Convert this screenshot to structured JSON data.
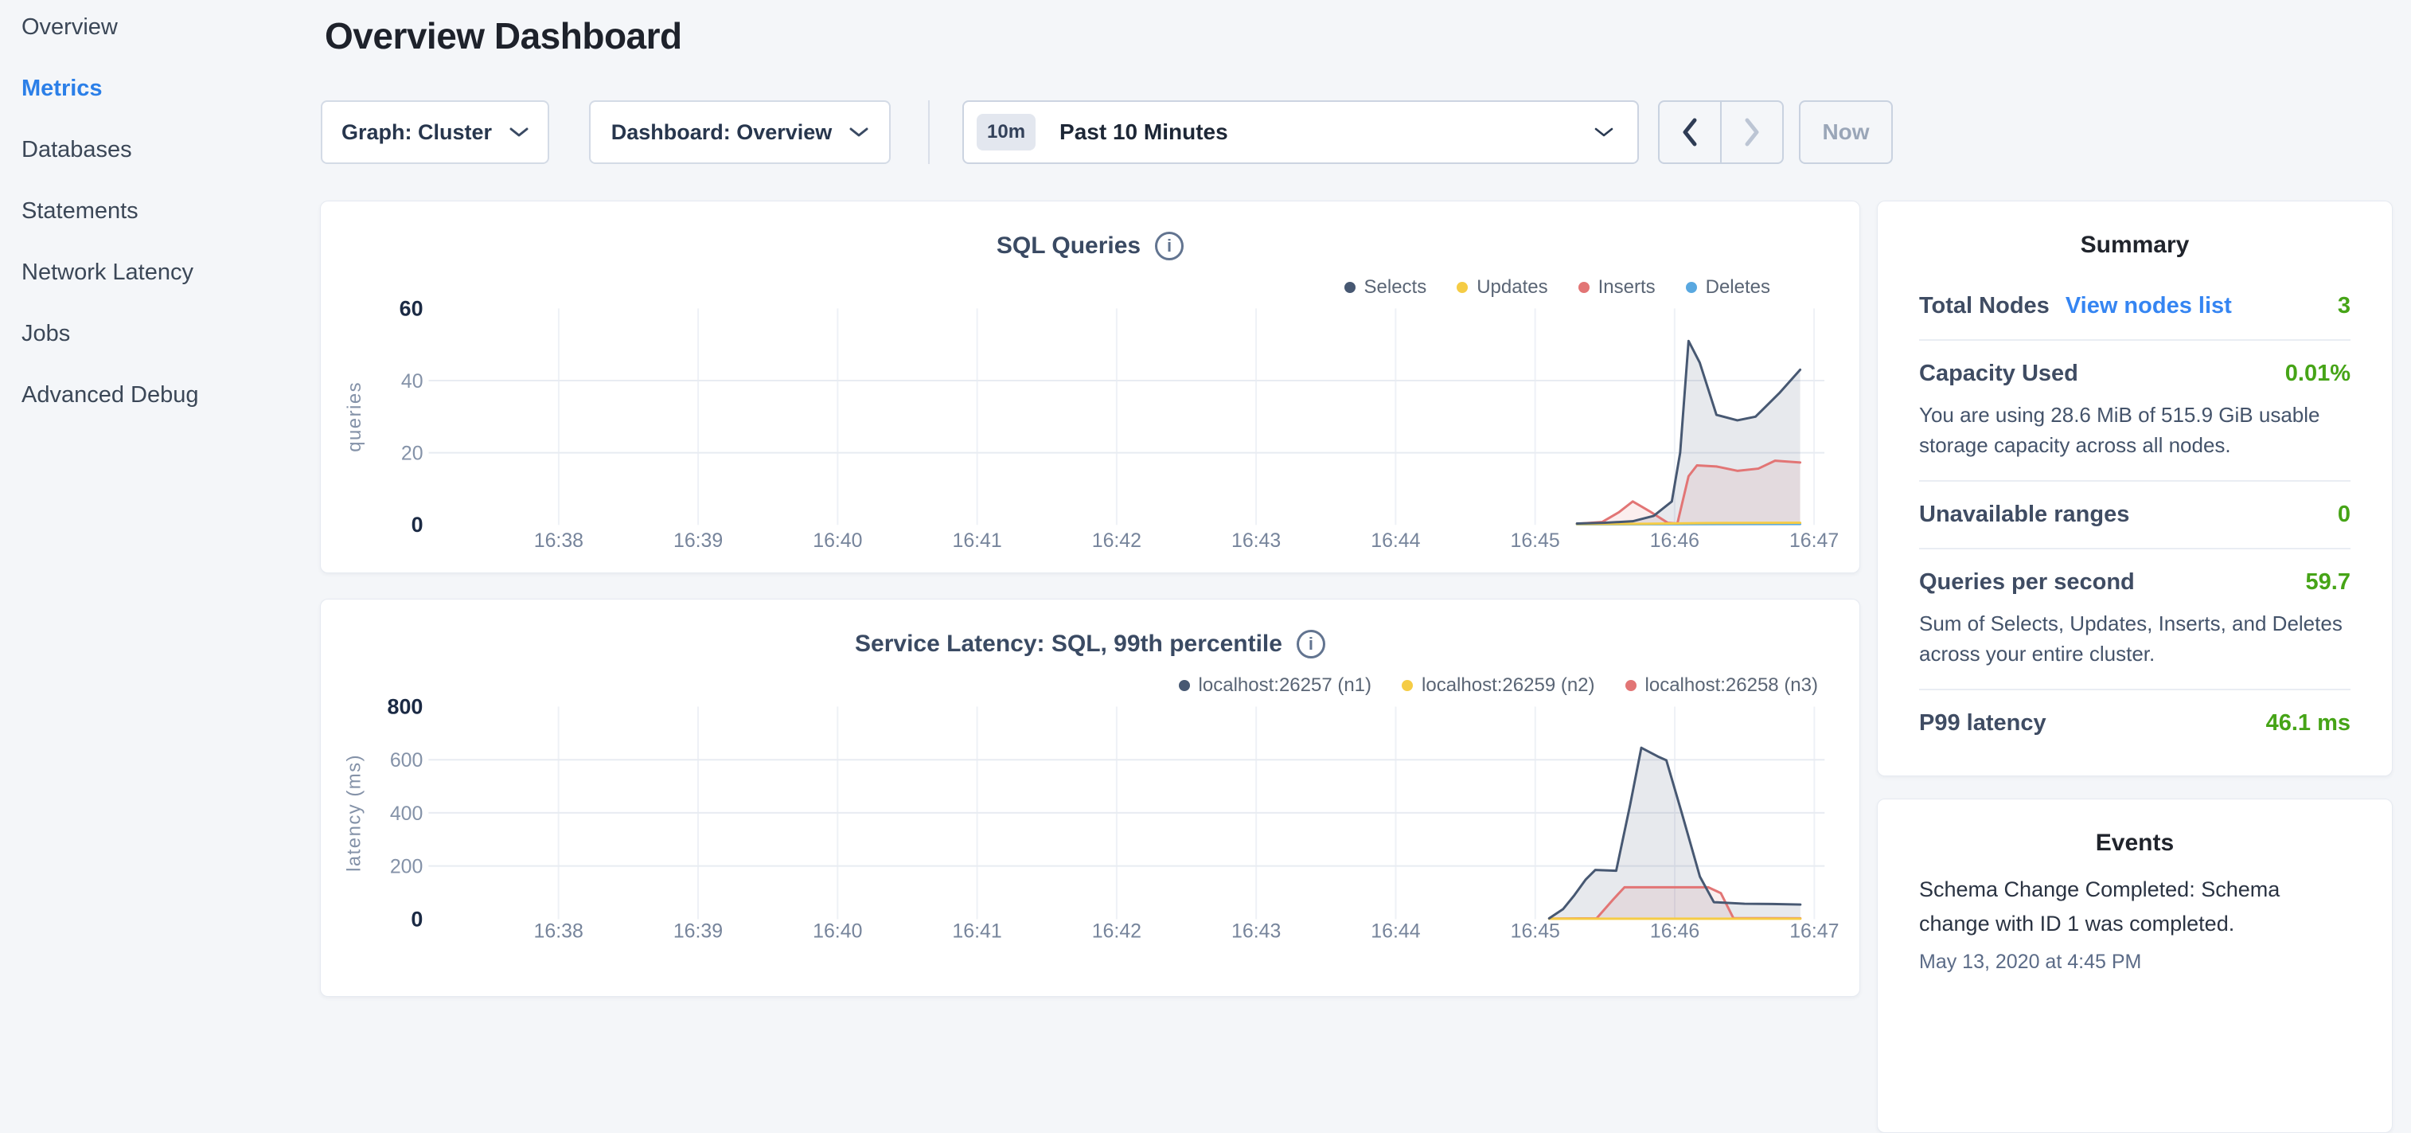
{
  "header": {
    "title": "Overview Dashboard"
  },
  "sidebar": {
    "items": [
      {
        "label": "Overview",
        "active": false
      },
      {
        "label": "Metrics",
        "active": true
      },
      {
        "label": "Databases",
        "active": false
      },
      {
        "label": "Statements",
        "active": false
      },
      {
        "label": "Network Latency",
        "active": false
      },
      {
        "label": "Jobs",
        "active": false
      },
      {
        "label": "Advanced Debug",
        "active": false
      }
    ]
  },
  "toolbar": {
    "graph_label": "Graph: Cluster",
    "dashboard_label": "Dashboard: Overview",
    "time_badge": "10m",
    "time_label": "Past 10 Minutes",
    "now_label": "Now"
  },
  "icons": {
    "info_glyph": "i"
  },
  "colors": {
    "accent_blue": "#2b7fe8",
    "link_blue": "#3585f2",
    "value_green": "#46a417",
    "series_navy": "#475872",
    "series_yellow": "#f5cc45",
    "series_red": "#e27575",
    "series_blue": "#59a8e0"
  },
  "summary": {
    "title": "Summary",
    "metrics": [
      {
        "label": "Total Nodes",
        "link": "View nodes list",
        "value": "3"
      },
      {
        "label": "Capacity Used",
        "value": "0.01%",
        "desc": "You are using 28.6 MiB of 515.9 GiB usable storage capacity across all nodes."
      },
      {
        "label": "Unavailable ranges",
        "value": "0"
      },
      {
        "label": "Queries per second",
        "value": "59.7",
        "desc": "Sum of Selects, Updates, Inserts, and Deletes across your entire cluster."
      },
      {
        "label": "P99 latency",
        "value": "46.1 ms"
      }
    ]
  },
  "events": {
    "title": "Events",
    "items": [
      {
        "text": "Schema Change Completed: Schema change with ID 1 was completed.",
        "time": "May 13, 2020 at 4:45 PM"
      }
    ]
  },
  "chart_data": [
    {
      "type": "line",
      "title": "SQL Queries",
      "ylabel": "queries",
      "ylim": [
        0,
        60
      ],
      "y_ticks": [
        0,
        20,
        40,
        60
      ],
      "x_ticks": [
        "16:38",
        "16:39",
        "16:40",
        "16:41",
        "16:42",
        "16:43",
        "16:44",
        "16:45",
        "16:46",
        "16:47"
      ],
      "x_unit": "minutes after 16:38",
      "grid": true,
      "legend_position": "top-right",
      "series": [
        {
          "name": "Selects",
          "color": "#475872",
          "fill": "rgba(71,88,114,0.13)",
          "points": [
            [
              7.3,
              0.4
            ],
            [
              7.5,
              0.6
            ],
            [
              7.7,
              1.0
            ],
            [
              7.85,
              2.5
            ],
            [
              7.98,
              6.5
            ],
            [
              8.04,
              20
            ],
            [
              8.1,
              51
            ],
            [
              8.18,
              45
            ],
            [
              8.3,
              30.5
            ],
            [
              8.45,
              29
            ],
            [
              8.58,
              30
            ],
            [
              8.75,
              36.5
            ],
            [
              8.9,
              43
            ]
          ]
        },
        {
          "name": "Updates",
          "color": "#f5cc45",
          "points": [
            [
              7.3,
              0.25
            ],
            [
              7.8,
              0.3
            ],
            [
              8.2,
              0.5
            ],
            [
              8.9,
              0.6
            ]
          ]
        },
        {
          "name": "Inserts",
          "color": "#e27575",
          "fill": "rgba(226,117,117,0.12)",
          "points": [
            [
              7.3,
              0.3
            ],
            [
              7.48,
              0.8
            ],
            [
              7.6,
              3.5
            ],
            [
              7.7,
              6.5
            ],
            [
              7.82,
              3.8
            ],
            [
              7.95,
              0.6
            ],
            [
              8.02,
              0.4
            ],
            [
              8.1,
              13.5
            ],
            [
              8.16,
              16.5
            ],
            [
              8.3,
              16.2
            ],
            [
              8.45,
              15.0
            ],
            [
              8.6,
              15.6
            ],
            [
              8.72,
              17.8
            ],
            [
              8.9,
              17.3
            ]
          ]
        },
        {
          "name": "Deletes",
          "color": "#59a8e0",
          "points": [
            [
              7.3,
              0.15
            ],
            [
              8.9,
              0.25
            ]
          ]
        }
      ]
    },
    {
      "type": "line",
      "title": "Service Latency: SQL, 99th percentile",
      "ylabel": "latency (ms)",
      "ylim": [
        0,
        800
      ],
      "y_ticks": [
        0,
        200,
        400,
        600,
        800
      ],
      "x_ticks": [
        "16:38",
        "16:39",
        "16:40",
        "16:41",
        "16:42",
        "16:43",
        "16:44",
        "16:45",
        "16:46",
        "16:47"
      ],
      "x_unit": "minutes after 16:38",
      "grid": true,
      "legend_position": "top-right",
      "series": [
        {
          "name": "localhost:26257 (n1)",
          "color": "#475872",
          "fill": "rgba(71,88,114,0.13)",
          "points": [
            [
              7.1,
              3
            ],
            [
              7.2,
              38
            ],
            [
              7.28,
              90
            ],
            [
              7.36,
              148
            ],
            [
              7.43,
              185
            ],
            [
              7.58,
              182
            ],
            [
              7.68,
              430
            ],
            [
              7.76,
              645
            ],
            [
              7.88,
              612
            ],
            [
              7.94,
              598
            ],
            [
              8.05,
              400
            ],
            [
              8.18,
              160
            ],
            [
              8.28,
              64
            ],
            [
              8.5,
              58
            ],
            [
              8.7,
              57
            ],
            [
              8.9,
              55
            ]
          ]
        },
        {
          "name": "localhost:26259 (n2)",
          "color": "#f5cc45",
          "points": [
            [
              7.1,
              1.5
            ],
            [
              8.9,
              1.5
            ]
          ]
        },
        {
          "name": "localhost:26258 (n3)",
          "color": "#e27575",
          "fill": "rgba(226,117,117,0.12)",
          "points": [
            [
              7.1,
              2
            ],
            [
              7.44,
              3
            ],
            [
              7.56,
              75
            ],
            [
              7.64,
              120
            ],
            [
              8.24,
              120
            ],
            [
              8.33,
              98
            ],
            [
              8.42,
              4
            ],
            [
              8.9,
              3
            ]
          ]
        }
      ]
    }
  ]
}
